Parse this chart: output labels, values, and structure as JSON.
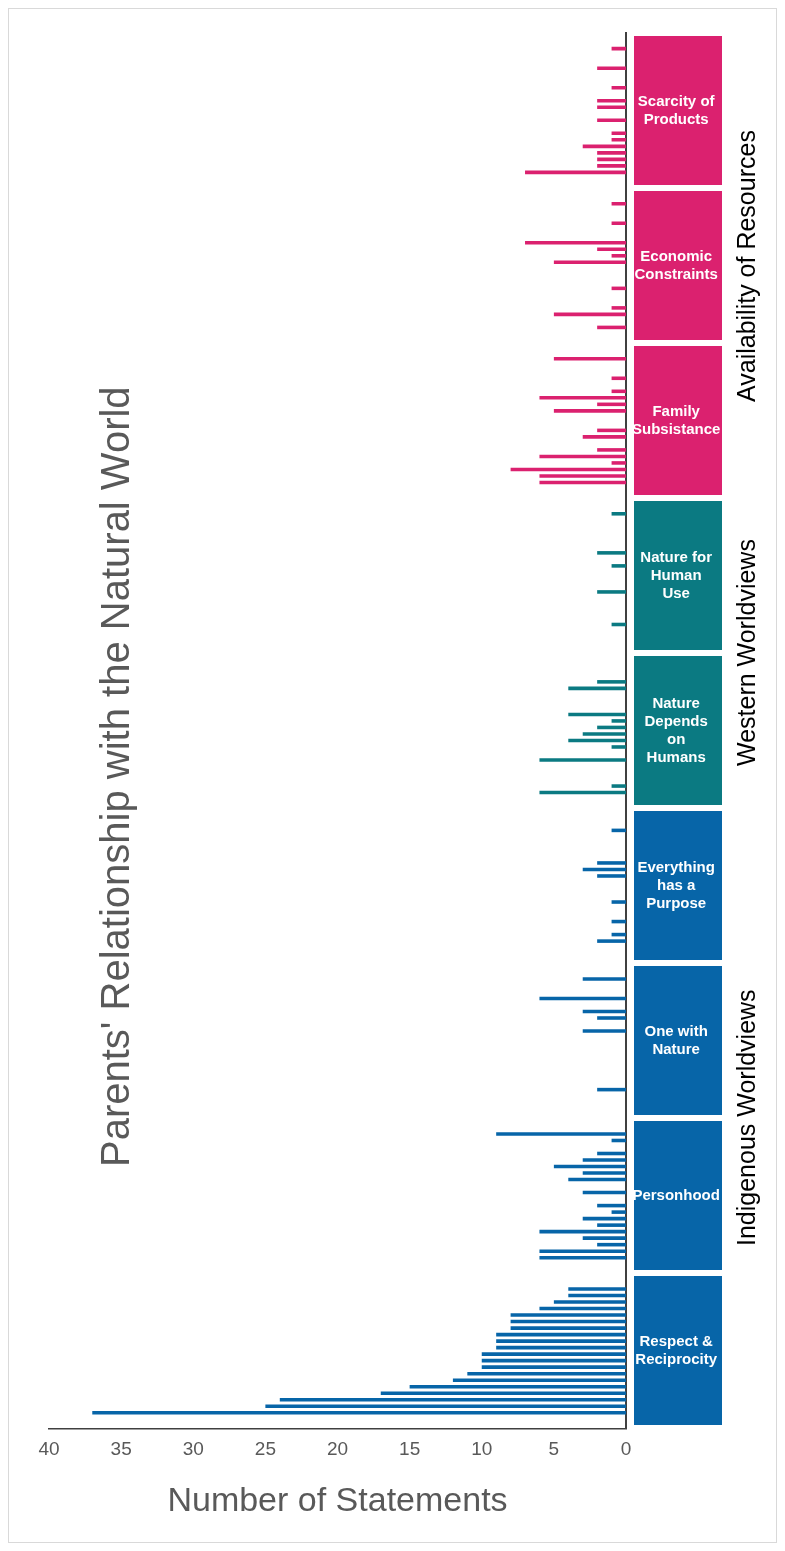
{
  "chart_data": {
    "type": "bar",
    "orientation": "horizontal",
    "title": "Parents' Relationship with the Natural World",
    "xlabel": "Number of Statements",
    "categories": [
      "Scarcity of Products",
      "Economic Constraints",
      "Family Subsistance",
      "Nature for Human Use",
      "Nature Depends on Humans",
      "Everything has a Purpose",
      "One with Nature",
      "Personhood",
      "Respect & Reciprocity"
    ],
    "xlim": [
      40,
      0
    ],
    "xticks": [
      0,
      5,
      10,
      15,
      20,
      25,
      30,
      35,
      40
    ],
    "annotations": [
      "Availability of Resources",
      "Western Worldviews",
      "Indigenous Worldviews"
    ],
    "series": [
      {
        "colors": [
          "#db216f",
          "#db216f",
          "#db216f",
          "#0b7a82",
          "#0b7a82",
          "#0765a8",
          "#0765a8",
          "#0765a8",
          "#0765a8"
        ],
        "values": [
          1,
          1,
          5,
          1,
          null,
          null,
          3,
          9,
          4
        ]
      },
      {
        "colors": [
          "#db216f",
          "#db216f",
          "#db216f",
          "#0b7a82",
          "#0b7a82",
          "#0765a8",
          "#0765a8",
          "#0765a8",
          "#0765a8"
        ],
        "values": [
          null,
          null,
          null,
          null,
          null,
          1,
          null,
          1,
          4
        ]
      },
      {
        "colors": [
          "#db216f",
          "#db216f",
          "#db216f",
          "#0b7a82",
          "#0b7a82",
          "#0765a8",
          "#0765a8",
          "#0765a8",
          "#0765a8"
        ],
        "values": [
          null,
          null,
          null,
          null,
          2,
          null,
          null,
          null,
          5
        ]
      },
      {
        "colors": [
          "#db216f",
          "#db216f",
          "#db216f",
          "#0b7a82",
          "#0b7a82",
          "#0765a8",
          "#0765a8",
          "#0765a8",
          "#0765a8"
        ],
        "values": [
          2,
          1,
          1,
          null,
          4,
          null,
          6,
          2,
          6
        ]
      },
      {
        "colors": [
          "#db216f",
          "#db216f",
          "#db216f",
          "#0b7a82",
          "#0b7a82",
          "#0765a8",
          "#0765a8",
          "#0765a8",
          "#0765a8"
        ],
        "values": [
          null,
          null,
          null,
          null,
          null,
          null,
          null,
          3,
          8
        ]
      },
      {
        "colors": [
          "#db216f",
          "#db216f",
          "#db216f",
          "#0b7a82",
          "#0b7a82",
          "#0765a8",
          "#0765a8",
          "#0765a8",
          "#0765a8"
        ],
        "values": [
          null,
          null,
          1,
          null,
          null,
          null,
          3,
          5,
          8
        ]
      },
      {
        "colors": [
          "#db216f",
          "#db216f",
          "#db216f",
          "#0b7a82",
          "#0b7a82",
          "#0765a8",
          "#0765a8",
          "#0765a8",
          "#0765a8"
        ],
        "values": [
          1,
          7,
          6,
          2,
          null,
          2,
          2,
          3,
          8
        ]
      },
      {
        "colors": [
          "#db216f",
          "#db216f",
          "#db216f",
          "#0b7a82",
          "#0b7a82",
          "#0765a8",
          "#0765a8",
          "#0765a8",
          "#0765a8"
        ],
        "values": [
          null,
          2,
          2,
          null,
          4,
          3,
          null,
          4,
          9
        ]
      },
      {
        "colors": [
          "#db216f",
          "#db216f",
          "#db216f",
          "#0b7a82",
          "#0b7a82",
          "#0765a8",
          "#0765a8",
          "#0765a8",
          "#0765a8"
        ],
        "values": [
          2,
          1,
          5,
          1,
          1,
          2,
          3,
          null,
          9
        ]
      },
      {
        "colors": [
          "#db216f",
          "#db216f",
          "#db216f",
          "#0b7a82",
          "#0b7a82",
          "#0765a8",
          "#0765a8",
          "#0765a8",
          "#0765a8"
        ],
        "values": [
          2,
          5,
          null,
          null,
          2,
          null,
          null,
          3,
          9
        ]
      },
      {
        "colors": [
          "#db216f",
          "#db216f",
          "#db216f",
          "#0b7a82",
          "#0b7a82",
          "#0765a8",
          "#0765a8",
          "#0765a8",
          "#0765a8"
        ],
        "values": [
          null,
          null,
          null,
          null,
          3,
          null,
          null,
          null,
          10
        ]
      },
      {
        "colors": [
          "#db216f",
          "#db216f",
          "#db216f",
          "#0b7a82",
          "#0b7a82",
          "#0765a8",
          "#0765a8",
          "#0765a8",
          "#0765a8"
        ],
        "values": [
          2,
          null,
          2,
          null,
          4,
          null,
          null,
          2,
          10
        ]
      },
      {
        "colors": [
          "#db216f",
          "#db216f",
          "#db216f",
          "#0b7a82",
          "#0b7a82",
          "#0765a8",
          "#0765a8",
          "#0765a8",
          "#0765a8"
        ],
        "values": [
          null,
          null,
          3,
          2,
          1,
          1,
          null,
          1,
          10
        ]
      },
      {
        "colors": [
          "#db216f",
          "#db216f",
          "#db216f",
          "#0b7a82",
          "#0b7a82",
          "#0765a8",
          "#0765a8",
          "#0765a8",
          "#0765a8"
        ],
        "values": [
          1,
          1,
          null,
          null,
          null,
          null,
          null,
          3,
          11
        ]
      },
      {
        "colors": [
          "#db216f",
          "#db216f",
          "#db216f",
          "#0b7a82",
          "#0b7a82",
          "#0765a8",
          "#0765a8",
          "#0765a8",
          "#0765a8"
        ],
        "values": [
          1,
          null,
          2,
          null,
          6,
          null,
          null,
          2,
          12
        ]
      },
      {
        "colors": [
          "#db216f",
          "#db216f",
          "#db216f",
          "#0b7a82",
          "#0b7a82",
          "#0765a8",
          "#0765a8",
          "#0765a8",
          "#0765a8"
        ],
        "values": [
          3,
          null,
          6,
          null,
          null,
          1,
          null,
          6,
          15
        ]
      },
      {
        "colors": [
          "#db216f",
          "#db216f",
          "#db216f",
          "#0b7a82",
          "#0b7a82",
          "#0765a8",
          "#0765a8",
          "#0765a8",
          "#0765a8"
        ],
        "values": [
          2,
          1,
          1,
          null,
          null,
          null,
          null,
          3,
          17
        ]
      },
      {
        "colors": [
          "#db216f",
          "#db216f",
          "#db216f",
          "#0b7a82",
          "#0b7a82",
          "#0765a8",
          "#0765a8",
          "#0765a8",
          "#0765a8"
        ],
        "values": [
          2,
          5,
          8,
          1,
          null,
          1,
          2,
          2,
          24
        ]
      },
      {
        "colors": [
          "#db216f",
          "#db216f",
          "#db216f",
          "#0b7a82",
          "#0b7a82",
          "#0765a8",
          "#0765a8",
          "#0765a8",
          "#0765a8"
        ],
        "values": [
          2,
          null,
          6,
          null,
          1,
          2,
          null,
          6,
          25
        ]
      },
      {
        "colors": [
          "#db216f",
          "#db216f",
          "#db216f",
          "#0b7a82",
          "#0b7a82",
          "#0765a8",
          "#0765a8",
          "#0765a8",
          "#0765a8"
        ],
        "values": [
          7,
          2,
          6,
          null,
          6,
          null,
          null,
          6,
          37
        ]
      }
    ]
  }
}
